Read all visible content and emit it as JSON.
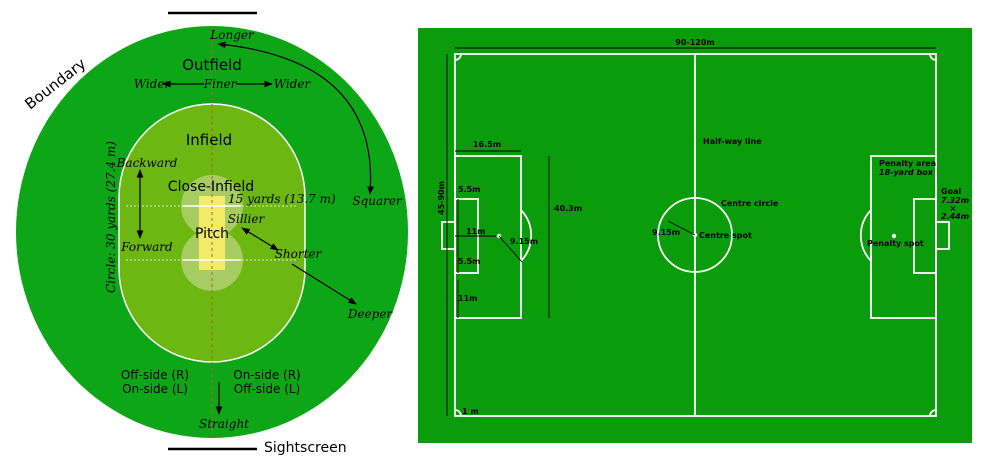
{
  "colors": {
    "outfield": "#0da617",
    "infield": "#6db713",
    "close_infield": "#a6cc62",
    "pitch": "#f2ec6a",
    "soccer_field": "#0a9c0a",
    "lines": "#ffffff",
    "ink": "#000000",
    "pitch_axis": "#c05a2a"
  },
  "cricket": {
    "boundary": "Boundary",
    "sightscreen": "Sightscreen",
    "outfield": "Outfield",
    "infield": "Infield",
    "close_infield": "Close-Infield",
    "pitch": "Pitch",
    "longer": "Longer",
    "wider_left": "Wider",
    "finer": "Finer",
    "wider_right": "Wider",
    "backward": "Backward",
    "forward": "Forward",
    "circle": "Circle: 30 yards (27.4 m)",
    "fifteen_yards": "15 yards (13.7 m)",
    "sillier": "Sillier",
    "shorter": "Shorter",
    "squarer": "Squarer",
    "deeper": "Deeper",
    "straight": "Straight",
    "offside_r": "Off-side (R)",
    "onside_l": "On-side (L)",
    "onside_r": "On-side (R)",
    "offside_l": "Off-side (L)"
  },
  "soccer": {
    "length": "90-120m",
    "width": "45-90m",
    "penalty_depth": "16.5m",
    "goal_area_width": "5.5m",
    "goal_area_width_2": "5.5m",
    "penalty_spot_dist": "11m",
    "penalty_spot_dist_2": "11m",
    "penalty_arc_radius": "9.15m",
    "penalty_area_width": "40.3m",
    "centre_radius": "9.15m",
    "corner_arc": "1 m",
    "halfway_line": "Half-way line",
    "centre_circle": "Centre circle",
    "centre_spot": "Centre spot",
    "penalty_area": "Penalty area",
    "yard_box": "18-yard box",
    "goal": "Goal",
    "goal_width": "7.32m",
    "goal_times": "×",
    "goal_height": "2.44m",
    "penalty_spot": "Penalty spot"
  }
}
